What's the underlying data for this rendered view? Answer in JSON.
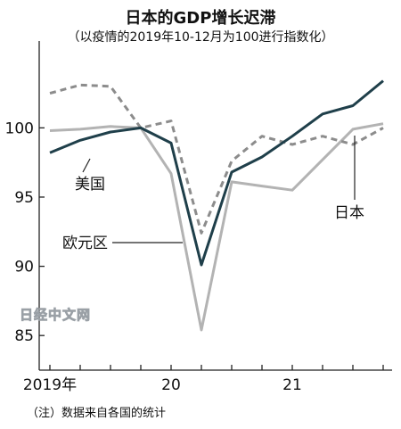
{
  "title": "日本的GDP增长迟滞",
  "subtitle": "（以疫情的2019年10-12月为100进行指数化）",
  "note": "（注）数据来自各国的统计",
  "watermark": "日经中文网",
  "chart_data": {
    "type": "line",
    "x": [
      "2019Q1",
      "2019Q2",
      "2019Q3",
      "2019Q4",
      "2020Q1",
      "2020Q2",
      "2020Q3",
      "2020Q4",
      "2021Q1",
      "2021Q2",
      "2021Q3",
      "2021Q4"
    ],
    "x_tick_labels": [
      {
        "label": "2019年",
        "at": "2019Q1"
      },
      {
        "label": "20",
        "at": "2020Q1"
      },
      {
        "label": "21",
        "at": "2021Q1"
      }
    ],
    "y_ticks": [
      85,
      90,
      95,
      100
    ],
    "ylim": [
      82.5,
      105.5
    ],
    "grid": false,
    "series": [
      {
        "name": "美国",
        "color": "#1f3f4a",
        "style": "solid",
        "values": [
          98.2,
          99.1,
          99.7,
          100.0,
          98.9,
          90.1,
          96.8,
          97.9,
          99.4,
          101.0,
          101.6,
          103.4
        ]
      },
      {
        "name": "日本",
        "color": "#8c8c8c",
        "style": "dashed",
        "values": [
          102.5,
          103.1,
          103.0,
          100.0,
          100.5,
          92.4,
          97.6,
          99.4,
          98.8,
          99.4,
          98.8,
          100.0
        ]
      },
      {
        "name": "欧元区",
        "color": "#b3b3b3",
        "style": "solid",
        "values": [
          99.8,
          99.9,
          100.1,
          100.0,
          96.7,
          85.4,
          96.1,
          95.8,
          95.5,
          97.7,
          99.9,
          100.3
        ]
      }
    ]
  }
}
